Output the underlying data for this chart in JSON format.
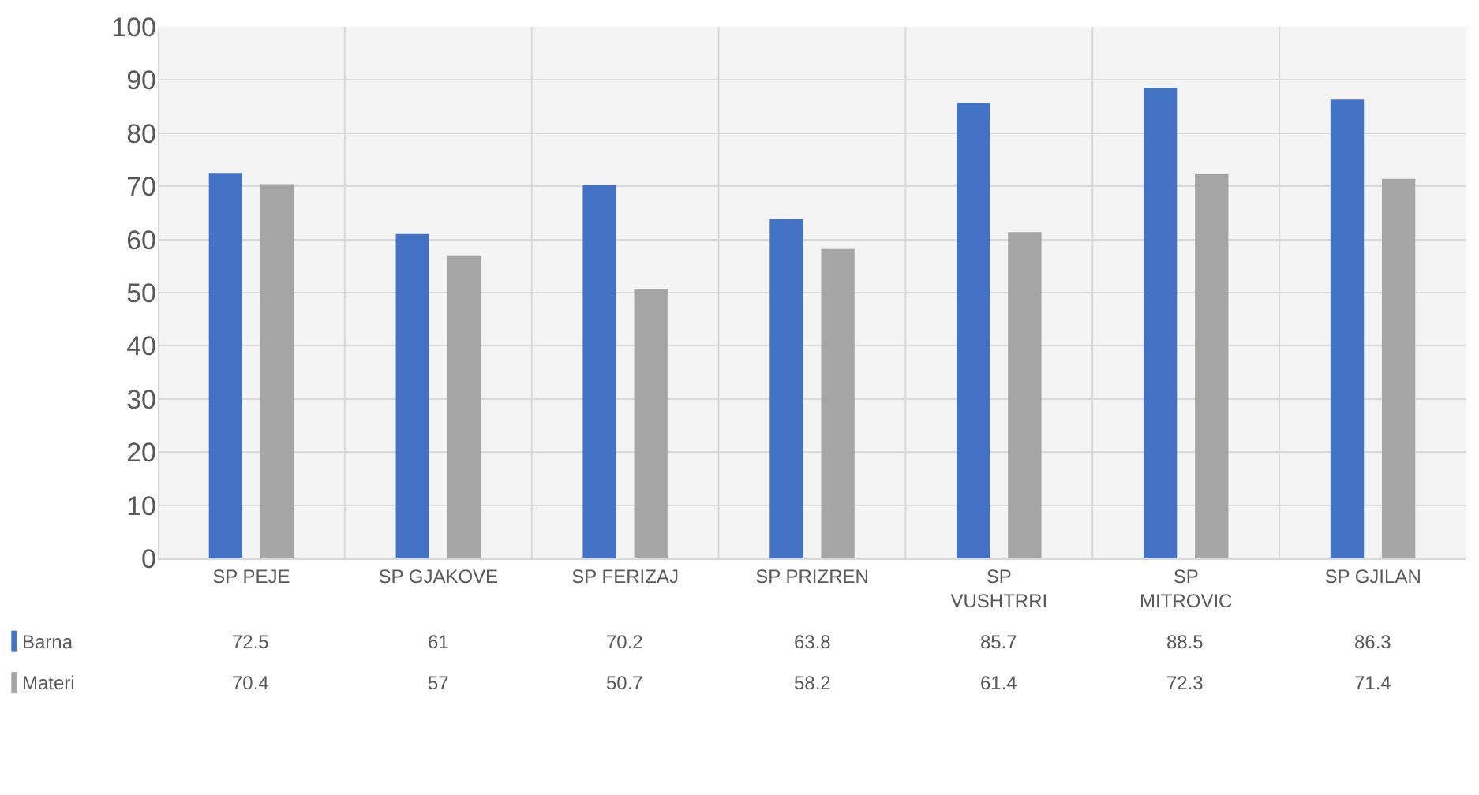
{
  "chart_data": {
    "type": "bar",
    "categories": [
      "SP PEJE",
      "SP GJAKOVE",
      "SP FERIZAJ",
      "SP PRIZREN",
      "SP VUSHTRRI",
      "SP MITROVIC",
      "SP GJILAN"
    ],
    "series": [
      {
        "name": "Barna",
        "color": "#4472c4",
        "values": [
          72.5,
          61,
          70.2,
          63.8,
          85.7,
          88.5,
          86.3
        ]
      },
      {
        "name": "Materi",
        "color": "#a5a5a5",
        "values": [
          70.4,
          57,
          50.7,
          58.2,
          61.4,
          72.3,
          71.4
        ]
      }
    ],
    "ylim": [
      0,
      100
    ],
    "yticks": [
      0,
      10,
      20,
      30,
      40,
      50,
      60,
      70,
      80,
      90,
      100
    ],
    "grid": true,
    "data_labels": true,
    "legend": "bottom left"
  }
}
